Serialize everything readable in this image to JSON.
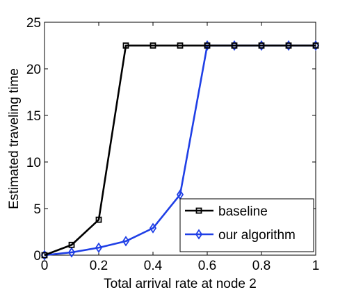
{
  "chart_data": {
    "type": "line",
    "title": "",
    "xlabel": "Total arrival rate at node 2",
    "ylabel": "Estimated traveling time",
    "xlim": [
      0,
      1
    ],
    "ylim": [
      0,
      25
    ],
    "xticks": [
      0,
      0.2,
      0.4,
      0.6,
      0.8,
      1
    ],
    "xtick_labels": [
      "0",
      "0.2",
      "0.4",
      "0.6",
      "0.8",
      "1"
    ],
    "yticks": [
      0,
      5,
      10,
      15,
      20,
      25
    ],
    "ytick_labels": [
      "0",
      "5",
      "10",
      "15",
      "20",
      "25"
    ],
    "grid": false,
    "legend_position": "bottom-right",
    "x": [
      0,
      0.1,
      0.2,
      0.3,
      0.4,
      0.5,
      0.6,
      0.7,
      0.8,
      0.9,
      1.0
    ],
    "series": [
      {
        "name": "baseline",
        "color": "#000000",
        "marker": "square",
        "values": [
          0,
          1.1,
          3.8,
          22.5,
          22.5,
          22.5,
          22.5,
          22.5,
          22.5,
          22.5,
          22.5
        ]
      },
      {
        "name": "our algorithm",
        "color": "#1f3fe6",
        "marker": "diamond",
        "values": [
          0,
          0.3,
          0.8,
          1.5,
          2.9,
          6.5,
          22.5,
          22.5,
          22.5,
          22.5,
          22.5
        ]
      }
    ]
  }
}
